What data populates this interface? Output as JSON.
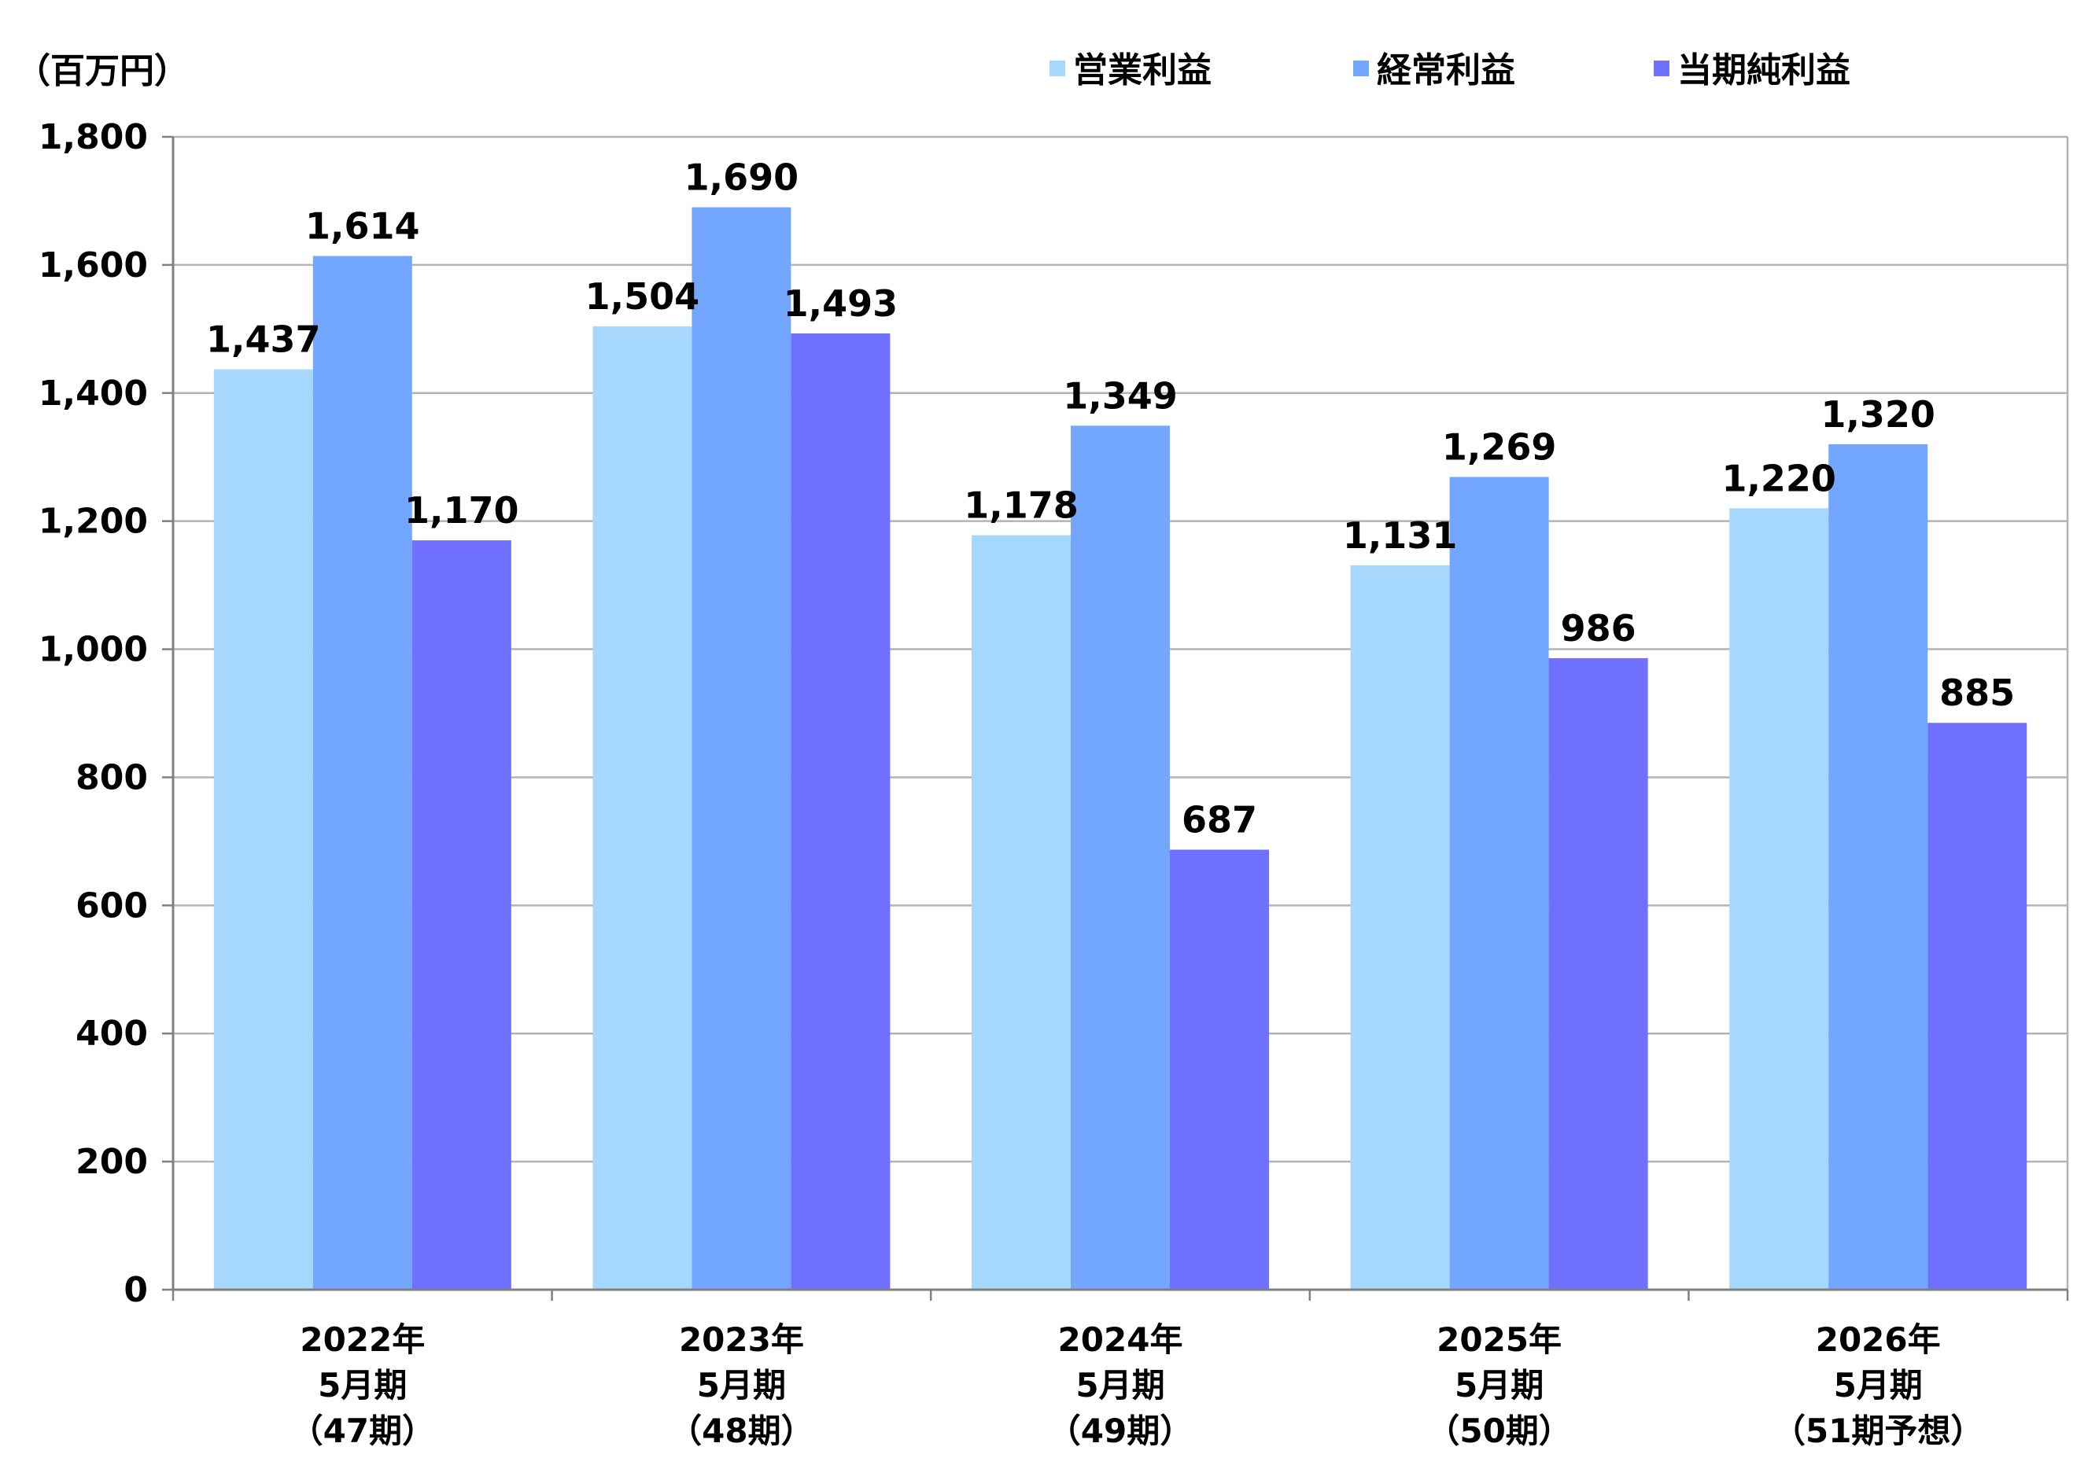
{
  "chart_data": {
    "type": "bar",
    "unit_label": "（百万円）",
    "categories": [
      [
        "2022年",
        "5月期",
        "（47期）"
      ],
      [
        "2023年",
        "5月期",
        "（48期）"
      ],
      [
        "2024年",
        "5月期",
        "（49期）"
      ],
      [
        "2025年",
        "5月期",
        "（50期）"
      ],
      [
        "2026年",
        "5月期",
        "（51期予想）"
      ]
    ],
    "series": [
      {
        "name": "営業利益",
        "color": "#a6d8ff",
        "values": [
          1437,
          1504,
          1178,
          1131,
          1220
        ],
        "labels": [
          "1,437",
          "1,504",
          "1,178",
          "1,131",
          "1,220"
        ]
      },
      {
        "name": "経常利益",
        "color": "#72a6ff",
        "values": [
          1614,
          1690,
          1349,
          1269,
          1320
        ],
        "labels": [
          "1,614",
          "1,690",
          "1,349",
          "1,269",
          "1,320"
        ]
      },
      {
        "name": "当期純利益",
        "color": "#7070ff",
        "values": [
          1170,
          1493,
          687,
          986,
          885
        ],
        "labels": [
          "1,170",
          "1,493",
          "687",
          "986",
          "885"
        ]
      }
    ],
    "ylim": [
      0,
      1800
    ],
    "yticks": [
      0,
      200,
      400,
      600,
      800,
      1000,
      1200,
      1400,
      1600,
      1800
    ],
    "ytick_labels": [
      "0",
      "200",
      "400",
      "600",
      "800",
      "1,000",
      "1,200",
      "1,400",
      "1,600",
      "1,800"
    ],
    "grid": true,
    "legend_position": "top-right"
  }
}
